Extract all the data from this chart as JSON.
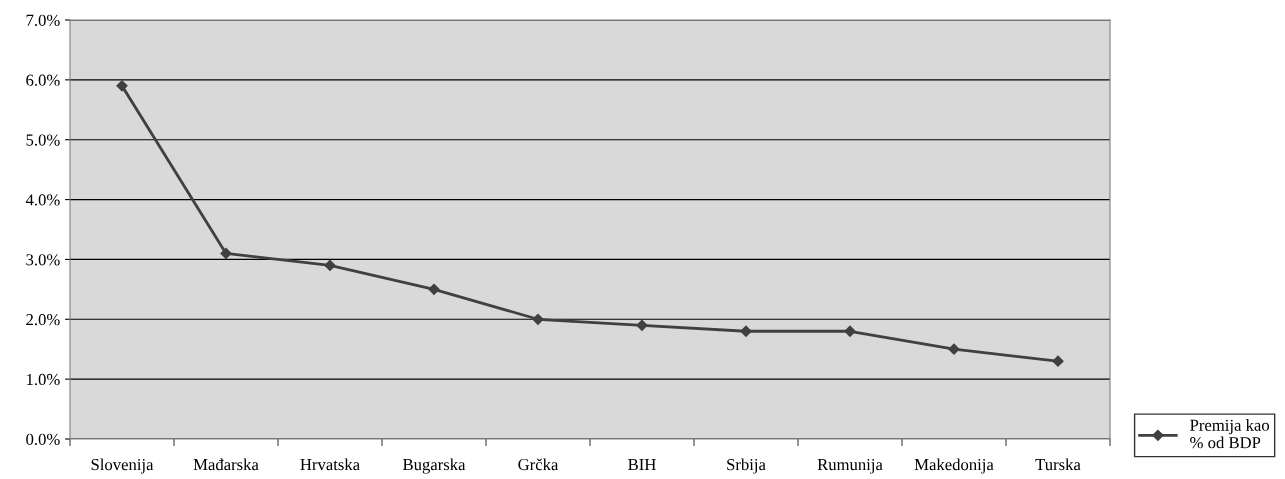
{
  "chart_data": {
    "type": "line",
    "categories": [
      "Slovenija",
      "Mađarska",
      "Hrvatska",
      "Bugarska",
      "Grčka",
      "BIH",
      "Srbija",
      "Rumunija",
      "Makedonija",
      "Turska"
    ],
    "series": [
      {
        "name": "Premija kao\n% od BDP",
        "color": "#404040",
        "values": [
          5.9,
          3.1,
          2.9,
          2.5,
          2.0,
          1.9,
          1.8,
          1.8,
          1.5,
          1.3
        ]
      }
    ],
    "ylim": [
      0,
      7
    ],
    "yticks": [
      {
        "value": 0,
        "label": "0.0%"
      },
      {
        "value": 1,
        "label": "1.0%"
      },
      {
        "value": 2,
        "label": "2.0%"
      },
      {
        "value": 3,
        "label": "3.0%"
      },
      {
        "value": 4,
        "label": "4.0%"
      },
      {
        "value": 5,
        "label": "5.0%"
      },
      {
        "value": 6,
        "label": "6.0%"
      },
      {
        "value": 7,
        "label": "7.0%"
      }
    ],
    "grid": "y",
    "legend": "bottom right",
    "marker": "diamond",
    "line_style": "solid"
  }
}
